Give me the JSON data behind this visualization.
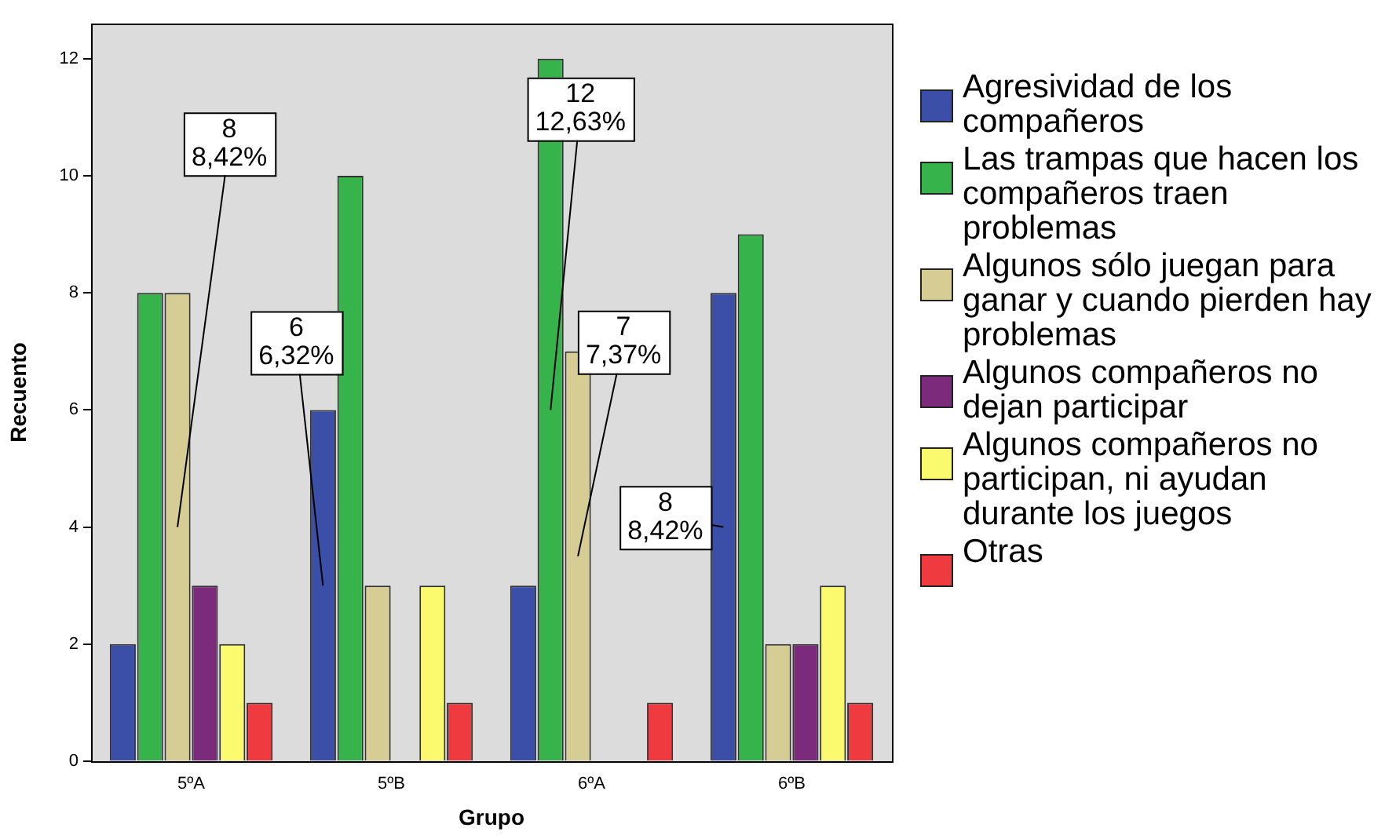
{
  "chart_data": {
    "type": "bar",
    "xlabel": "Grupo",
    "ylabel": "Recuento",
    "categories": [
      "5ºA",
      "5ºB",
      "6ºA",
      "6ºB"
    ],
    "series": [
      {
        "name": "Agresividad de los compañeros",
        "color": "#3c4fa8",
        "values": [
          2,
          6,
          3,
          8
        ]
      },
      {
        "name": "Las trampas que hacen los compañeros traen problemas",
        "color": "#36b34b",
        "values": [
          8,
          10,
          12,
          9
        ]
      },
      {
        "name": "Algunos sólo juegan para ganar y cuando pierden hay problemas",
        "color": "#d5cd93",
        "values": [
          8,
          3,
          7,
          2
        ]
      },
      {
        "name": "Algunos compañeros no dejan participar",
        "color": "#7b2a7c",
        "values": [
          3,
          null,
          null,
          2
        ]
      },
      {
        "name": "Algunos compañeros no participan, ni ayudan durante los juegos",
        "color": "#fbfa6e",
        "values": [
          2,
          3,
          null,
          3
        ]
      },
      {
        "name": "Otras",
        "color": "#ef3b3f",
        "values": [
          1,
          1,
          1,
          1
        ]
      }
    ],
    "ylim": [
      0,
      12.6
    ],
    "yticks": [
      0,
      2,
      4,
      6,
      8,
      10,
      12
    ],
    "grid": false,
    "legend": "right",
    "annotations": [
      "8\n8,42%",
      "6\n6,32%",
      "12\n12,63%",
      "7\n7,37%",
      "8\n8,42%"
    ]
  }
}
